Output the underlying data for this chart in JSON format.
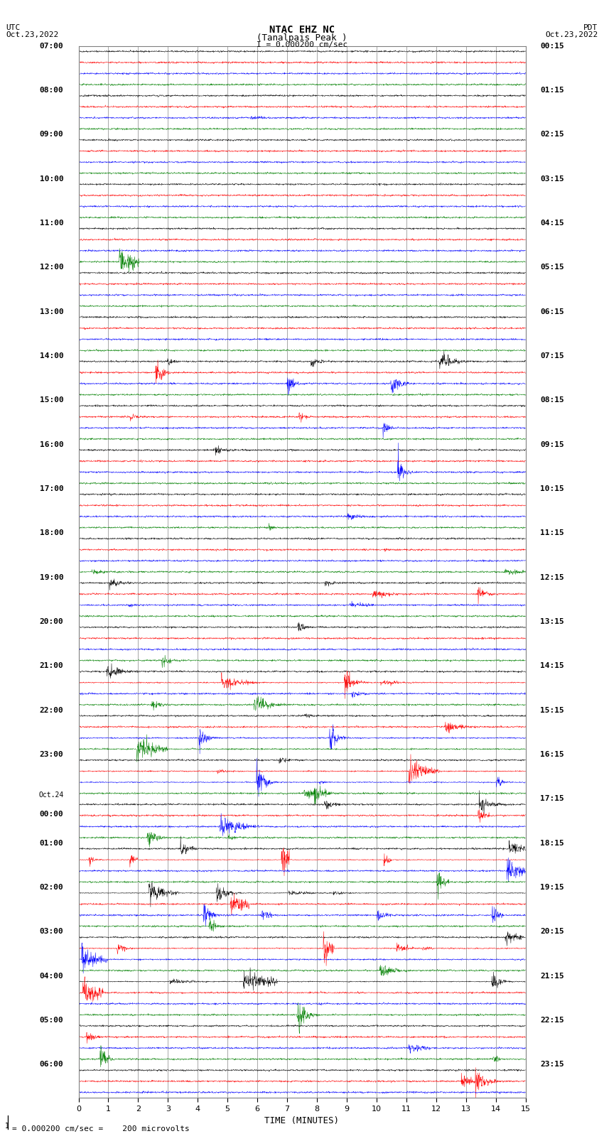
{
  "title_line1": "NTAC EHZ NC",
  "title_line2": "(Tanalpais Peak )",
  "title_line3": "I = 0.000200 cm/sec",
  "left_header_1": "UTC",
  "left_header_2": "Oct.23,2022",
  "right_header_1": "PDT",
  "right_header_2": "Oct.23,2022",
  "xlabel": "TIME (MINUTES)",
  "footer": "= 0.000200 cm/sec =    200 microvolts",
  "x_ticks": [
    0,
    1,
    2,
    3,
    4,
    5,
    6,
    7,
    8,
    9,
    10,
    11,
    12,
    13,
    14,
    15
  ],
  "colors": [
    "black",
    "red",
    "blue",
    "green"
  ],
  "background_color": "#ffffff",
  "grid_color": "#808080",
  "num_rows": 95,
  "samples_per_trace": 1800,
  "figsize": [
    8.5,
    16.13
  ],
  "dpi": 100,
  "base_noise": 0.04,
  "left_labels": [
    "07:00",
    "",
    "",
    "",
    "08:00",
    "",
    "",
    "",
    "09:00",
    "",
    "",
    "",
    "10:00",
    "",
    "",
    "",
    "11:00",
    "",
    "",
    "",
    "12:00",
    "",
    "",
    "",
    "13:00",
    "",
    "",
    "",
    "14:00",
    "",
    "",
    "",
    "15:00",
    "",
    "",
    "",
    "16:00",
    "",
    "",
    "",
    "17:00",
    "",
    "",
    "",
    "18:00",
    "",
    "",
    "",
    "19:00",
    "",
    "",
    "",
    "20:00",
    "",
    "",
    "",
    "21:00",
    "",
    "",
    "",
    "22:00",
    "",
    "",
    "",
    "23:00",
    "",
    "",
    "",
    "Oct.24",
    "00:00",
    "",
    "",
    "01:00",
    "",
    "",
    "",
    "02:00",
    "",
    "",
    "",
    "03:00",
    "",
    "",
    "",
    "04:00",
    "",
    "",
    "",
    "05:00",
    "",
    "",
    "",
    "06:00",
    "",
    ""
  ],
  "right_labels": [
    "00:15",
    "",
    "",
    "",
    "01:15",
    "",
    "",
    "",
    "02:15",
    "",
    "",
    "",
    "03:15",
    "",
    "",
    "",
    "04:15",
    "",
    "",
    "",
    "05:15",
    "",
    "",
    "",
    "06:15",
    "",
    "",
    "",
    "07:15",
    "",
    "",
    "",
    "08:15",
    "",
    "",
    "",
    "09:15",
    "",
    "",
    "",
    "10:15",
    "",
    "",
    "",
    "11:15",
    "",
    "",
    "",
    "12:15",
    "",
    "",
    "",
    "13:15",
    "",
    "",
    "",
    "14:15",
    "",
    "",
    "",
    "15:15",
    "",
    "",
    "",
    "16:15",
    "",
    "",
    "",
    "17:15",
    "",
    "",
    "",
    "18:15",
    "",
    "",
    "",
    "19:15",
    "",
    "",
    "",
    "20:15",
    "",
    "",
    "",
    "21:15",
    "",
    "",
    "",
    "22:15",
    "",
    "",
    "",
    "23:15",
    "",
    ""
  ]
}
